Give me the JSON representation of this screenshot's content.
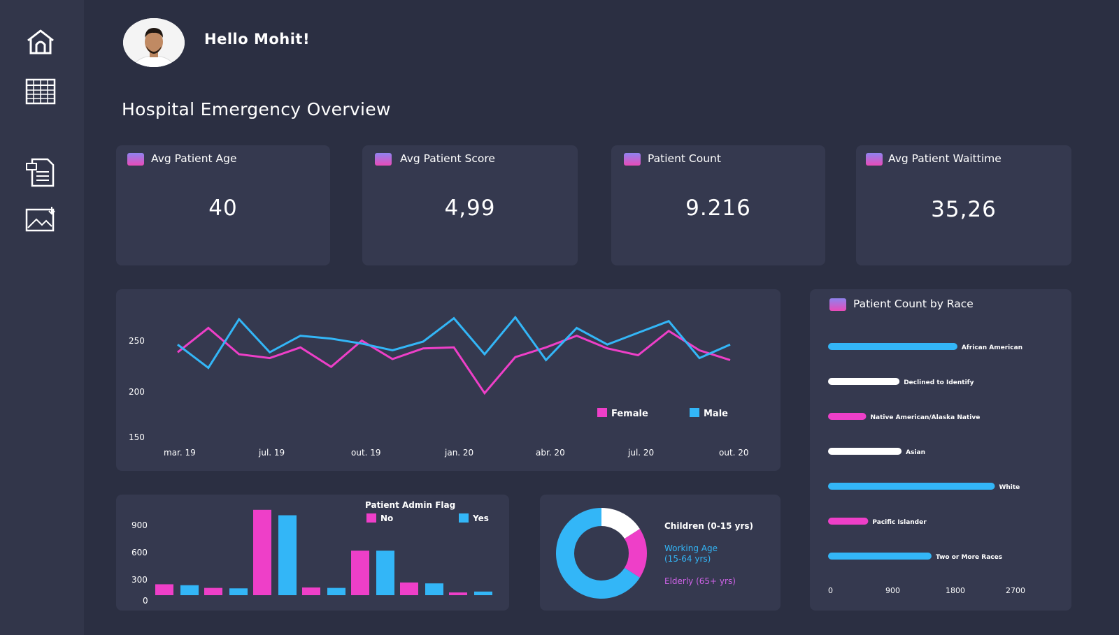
{
  "user": {
    "greeting": "Hello Mohit!"
  },
  "page": {
    "title": "Hospital Emergency Overview"
  },
  "sidebar": {
    "items": [
      {
        "icon": "home-icon"
      },
      {
        "icon": "table-grid-icon"
      },
      {
        "icon": "document-icon"
      },
      {
        "icon": "image-download-icon"
      }
    ]
  },
  "colors": {
    "pink": "#ee3fc8",
    "blue": "#33b6f7",
    "white": "#ffffff",
    "card": "#35394f",
    "background": "#2b2f42"
  },
  "kpis": [
    {
      "label": "Avg Patient Age",
      "value": "40"
    },
    {
      "label": "Avg Patient Score",
      "value": "4,99"
    },
    {
      "label": "Patient Count",
      "value": "9.216"
    },
    {
      "label": "Avg Patient Waittime",
      "value": "35,26"
    }
  ],
  "chart_data": [
    {
      "id": "line",
      "type": "line",
      "title": "",
      "x_labels": [
        "mar. 19",
        "jul. 19",
        "out. 19",
        "jan. 20",
        "abr. 20",
        "jul. 20",
        "out. 20"
      ],
      "y_ticks": [
        "250",
        "200",
        "150"
      ],
      "ylim": [
        150,
        275
      ],
      "series": [
        {
          "name": "Female",
          "color": "#ee3fc8",
          "values": [
            236,
            261,
            234,
            230,
            241,
            221,
            248,
            229,
            240,
            241,
            194,
            231,
            241,
            253,
            240,
            233,
            258,
            238,
            228
          ]
        },
        {
          "name": "Male",
          "color": "#33b6f7",
          "values": [
            244,
            220,
            270,
            236,
            253,
            250,
            245,
            238,
            247,
            271,
            234,
            272,
            228,
            261,
            244,
            256,
            268,
            230,
            244
          ]
        }
      ]
    },
    {
      "id": "bar",
      "type": "bar",
      "title": "Patient Admin Flag",
      "y_ticks": [
        "900",
        "600",
        "300",
        "0"
      ],
      "ylim": [
        0,
        1000
      ],
      "series": [
        {
          "name": "No",
          "color": "#ee3fc8",
          "values": [
            120,
            80,
            940,
            85,
            490,
            140,
            30
          ]
        },
        {
          "name": "Yes",
          "color": "#33b6f7",
          "values": [
            110,
            75,
            880,
            80,
            490,
            130,
            40
          ]
        }
      ]
    },
    {
      "id": "donut",
      "type": "pie",
      "title": "",
      "legend": [
        {
          "label": "Children (0-15 yrs)",
          "color": "#ffffff"
        },
        {
          "label": "Working Age",
          "label2": "(15-64 yrs)",
          "color": "#33b6f7"
        },
        {
          "label": "Elderly (65+ yrs)",
          "color": "#cf63e8"
        }
      ],
      "slices": [
        {
          "name": "Children (0-15 yrs)",
          "value": 16,
          "color": "#ffffff"
        },
        {
          "name": "Elderly (65+ yrs)",
          "value": 18,
          "color": "#ee3fc8"
        },
        {
          "name": "Working Age (15-64 yrs)",
          "value": 66,
          "color": "#33b6f7"
        }
      ]
    },
    {
      "id": "race",
      "type": "bar",
      "orientation": "horizontal",
      "title": "Patient Count by Race",
      "x_ticks": [
        "0",
        "900",
        "1800",
        "2700"
      ],
      "xlim": [
        0,
        3000
      ],
      "items": [
        {
          "label": "African American",
          "value": 1900,
          "color": "#33b6f7"
        },
        {
          "label": "Declined to Identify",
          "value": 1050,
          "color": "#ffffff"
        },
        {
          "label": "Native American/Alaska Native",
          "value": 560,
          "color": "#ee3fc8"
        },
        {
          "label": "Asian",
          "value": 1080,
          "color": "#ffffff"
        },
        {
          "label": "White",
          "value": 2450,
          "color": "#33b6f7"
        },
        {
          "label": "Pacific Islander",
          "value": 590,
          "color": "#ee3fc8"
        },
        {
          "label": "Two or More Races",
          "value": 1520,
          "color": "#33b6f7"
        }
      ]
    }
  ]
}
